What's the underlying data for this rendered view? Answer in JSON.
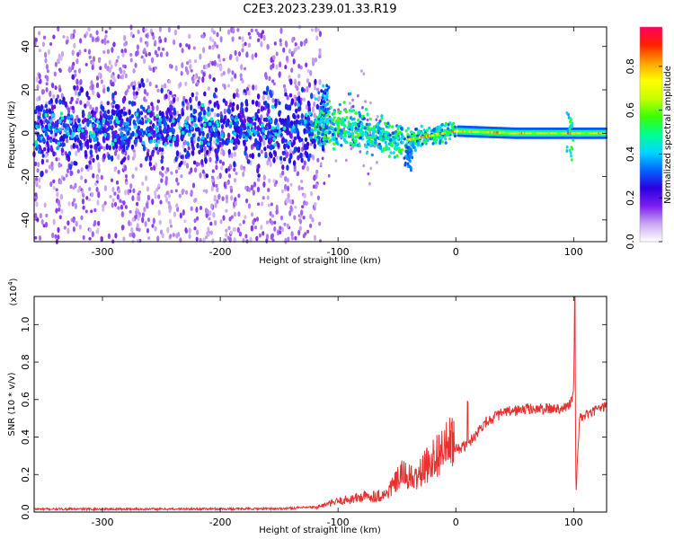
{
  "title": "C2E3.2023.239.01.33.R19",
  "chart_data": [
    {
      "type": "heatmap",
      "xlabel": "Height of straight line (km)",
      "ylabel": "Frequency (Hz)",
      "xlim": [
        -358,
        128
      ],
      "ylim": [
        -50,
        49
      ],
      "xticks": [
        -300,
        -200,
        -100,
        0,
        100
      ],
      "yticks": [
        -40,
        -20,
        0,
        20,
        40
      ],
      "colorbar": {
        "label": "Normalized spectral amplitude",
        "range": [
          0.0,
          0.98
        ],
        "ticks": [
          "0.0",
          "0.2",
          "0.4",
          "0.6",
          "0.8"
        ],
        "colors": [
          "#ffffff",
          "#c9a6f0",
          "#7a1ff0",
          "#2a00e0",
          "#0066ff",
          "#00d8ff",
          "#00ff90",
          "#3cff00",
          "#c8ff00",
          "#ffff00",
          "#ffa000",
          "#ff2000",
          "#ff0060"
        ]
      },
      "features": {
        "main_band_center_hz": [
          {
            "x": -350,
            "y": 2
          },
          {
            "x": -250,
            "y": 2
          },
          {
            "x": -150,
            "y": 2
          },
          {
            "x": -110,
            "y": 4
          },
          {
            "x": -80,
            "y": 2
          },
          {
            "x": -60,
            "y": -2
          },
          {
            "x": -40,
            "y": -3
          },
          {
            "x": -20,
            "y": -1
          },
          {
            "x": 0,
            "y": 1
          },
          {
            "x": 50,
            "y": 0
          },
          {
            "x": 100,
            "y": 0
          },
          {
            "x": 128,
            "y": 0
          }
        ]
      }
    },
    {
      "type": "line",
      "xlabel": "Height of straight line (km)",
      "ylabel": "SNR (10 * v/v)",
      "yscale_label": "(x10",
      "yscale_exp": "4",
      "yscale_close": ")",
      "xlim": [
        -358,
        128
      ],
      "ylim": [
        0.0,
        1.15
      ],
      "xticks": [
        -300,
        -200,
        -100,
        0,
        100
      ],
      "yticks": [
        "0.0",
        "0.2",
        "0.4",
        "0.6",
        "0.8",
        "1.0"
      ],
      "color": "#e83030",
      "series": [
        {
          "values_envelope": [
            {
              "x": -358,
              "y": 0.01
            },
            {
              "x": -250,
              "y": 0.01
            },
            {
              "x": -150,
              "y": 0.012
            },
            {
              "x": -120,
              "y": 0.02
            },
            {
              "x": -100,
              "y": 0.05
            },
            {
              "x": -80,
              "y": 0.07
            },
            {
              "x": -60,
              "y": 0.08
            },
            {
              "x": -45,
              "y": 0.18
            },
            {
              "x": -35,
              "y": 0.15
            },
            {
              "x": -20,
              "y": 0.25
            },
            {
              "x": -5,
              "y": 0.32
            },
            {
              "x": 10,
              "y": 0.36
            },
            {
              "x": 25,
              "y": 0.48
            },
            {
              "x": 40,
              "y": 0.53
            },
            {
              "x": 60,
              "y": 0.55
            },
            {
              "x": 80,
              "y": 0.55
            },
            {
              "x": 95,
              "y": 0.56
            },
            {
              "x": 100,
              "y": 0.62
            },
            {
              "x": 101,
              "y": 1.15
            },
            {
              "x": 102,
              "y": 0.1
            },
            {
              "x": 105,
              "y": 0.5
            },
            {
              "x": 128,
              "y": 0.57
            }
          ]
        }
      ]
    }
  ]
}
